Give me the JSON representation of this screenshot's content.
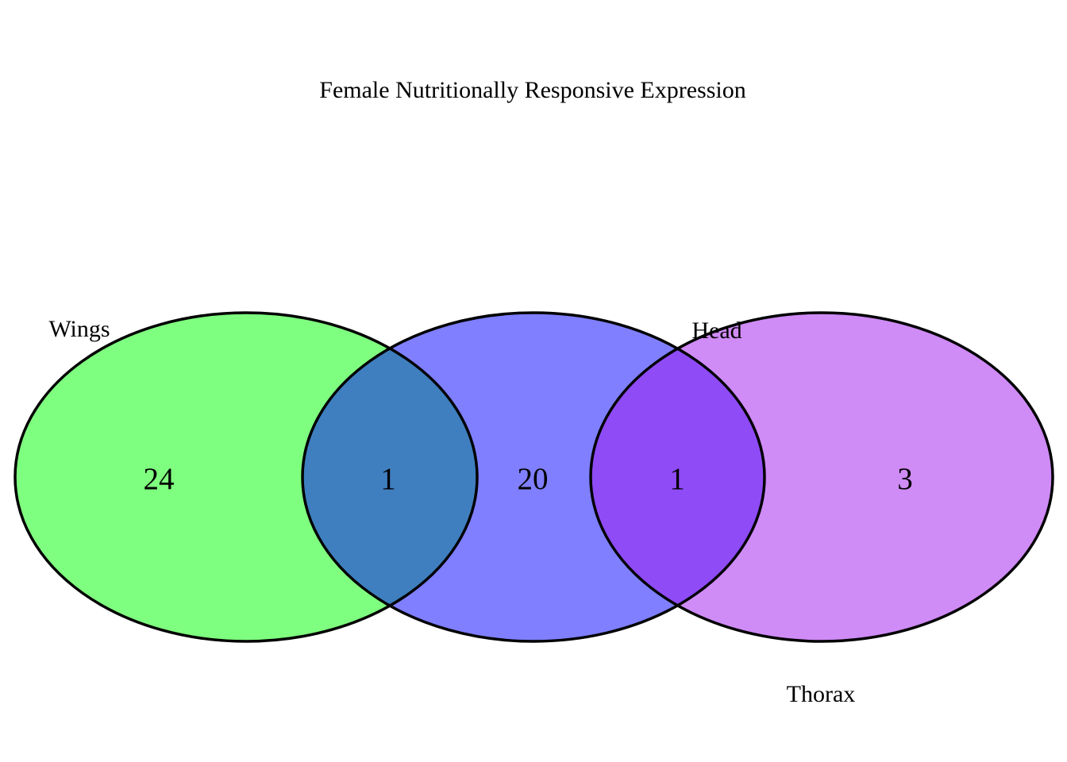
{
  "title": "Female Nutritionally Responsive Expression",
  "colors": {
    "wings": "#00ff00",
    "head": "#0000ff",
    "thorax": "#9f18ee",
    "outline": "#000000",
    "background": "#ffffff"
  },
  "sets": [
    {
      "name": "Wings"
    },
    {
      "name": "Head"
    },
    {
      "name": "Thorax"
    }
  ],
  "regions": {
    "wings_only": "24",
    "wings_head": "1",
    "head_only": "20",
    "head_thorax": "1",
    "thorax_only": "3"
  }
}
